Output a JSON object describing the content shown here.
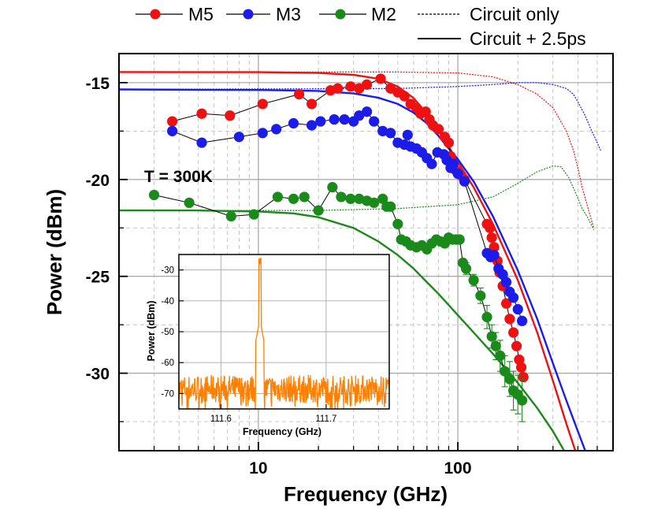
{
  "chart_data": {
    "type": "scatter",
    "xlabel": "Frequency  (GHz)",
    "ylabel": "Power  (dBm)",
    "xscale": "log",
    "xlim": [
      2.0,
      600
    ],
    "ylim": [
      -34,
      -13.5
    ],
    "xticks": [
      10,
      100
    ],
    "xtick_labels": [
      "10",
      "100"
    ],
    "yticks": [
      -15,
      -20,
      -25,
      -30
    ],
    "ytick_labels": [
      "-15",
      "-20",
      "-25",
      "-30"
    ],
    "grid": true,
    "legend_position": "top",
    "annotation": "T = 300K",
    "legend": {
      "m5": "M5",
      "m3": "M3",
      "m2": "M2",
      "circuit_only": "Circuit only",
      "circuit_plus": "Circuit + 2.5ps"
    },
    "series": [
      {
        "name": "M5",
        "color": "#ee1111",
        "style": "markers+line",
        "x": [
          3.7,
          5.2,
          7.2,
          10.5,
          16.0,
          18.5,
          23,
          25,
          29,
          32,
          35,
          41,
          46,
          50,
          54,
          58,
          62,
          65,
          69,
          72,
          75,
          80,
          86,
          90,
          92,
          94,
          97,
          100,
          104,
          108,
          140,
          145,
          148,
          152,
          158,
          162,
          168,
          175,
          182,
          190,
          197,
          203,
          208,
          213
        ],
        "y": [
          -17.0,
          -16.6,
          -16.7,
          -16.1,
          -15.6,
          -16.1,
          -15.4,
          -15.3,
          -15.2,
          -15.3,
          -15.1,
          -14.8,
          -15.3,
          -15.5,
          -15.7,
          -16.1,
          -16.3,
          -16.6,
          -16.5,
          -16.9,
          -17.2,
          -17.4,
          -17.8,
          -18.1,
          -18.8,
          -19.2,
          -19.5,
          -19.6,
          -19.8,
          -20.0,
          -22.3,
          -22.5,
          -23.0,
          -23.5,
          -24.2,
          -24.8,
          -25.5,
          -26.4,
          -27.2,
          -27.9,
          -28.6,
          -29.3,
          -29.7,
          -30.2
        ],
        "errors": []
      },
      {
        "name": "M3",
        "color": "#1b1bea",
        "style": "markers+line",
        "x": [
          3.7,
          5.2,
          8.0,
          10.5,
          12.3,
          15.0,
          18.5,
          20.5,
          24,
          27,
          30,
          32,
          35,
          38,
          42,
          46,
          50,
          54,
          56,
          58,
          62,
          66,
          70,
          74,
          79,
          85,
          88,
          92,
          95,
          100,
          108,
          140,
          146,
          152,
          160,
          168,
          175,
          182,
          190,
          200,
          210
        ],
        "y": [
          -17.5,
          -18.1,
          -17.8,
          -17.6,
          -17.4,
          -17.1,
          -17.2,
          -17.0,
          -16.9,
          -16.9,
          -17.0,
          -16.7,
          -16.5,
          -17.0,
          -17.5,
          -17.6,
          -18.1,
          -18.2,
          -17.7,
          -18.3,
          -18.4,
          -18.6,
          -18.9,
          -19.2,
          -18.6,
          -18.7,
          -19.0,
          -19.4,
          -19.2,
          -19.7,
          -20.1,
          -23.8,
          -24.0,
          -23.9,
          -24.6,
          -24.9,
          -25.3,
          -25.8,
          -26.1,
          -26.7,
          -27.3
        ],
        "errors": []
      },
      {
        "name": "M2",
        "color": "#1a8a1a",
        "style": "markers+line+errorbars",
        "x": [
          3.0,
          4.5,
          7.3,
          9.5,
          12.5,
          15.0,
          17.0,
          20.0,
          23.5,
          26,
          29,
          32,
          35,
          38,
          42,
          44,
          46,
          50,
          52,
          55,
          58,
          62,
          66,
          70,
          74,
          78,
          82,
          86,
          90,
          94,
          98,
          102,
          106,
          110,
          120,
          130,
          140,
          148,
          155,
          163,
          172,
          182,
          190,
          200,
          210
        ],
        "y": [
          -20.8,
          -21.2,
          -21.9,
          -21.8,
          -20.9,
          -21.0,
          -20.9,
          -21.6,
          -20.4,
          -20.9,
          -21.0,
          -21.0,
          -21.1,
          -21.2,
          -21.0,
          -21.4,
          -21.4,
          -22.3,
          -23.1,
          -23.2,
          -23.4,
          -23.5,
          -23.4,
          -23.6,
          -23.3,
          -23.1,
          -23.2,
          -23.3,
          -23.0,
          -23.1,
          -23.1,
          -23.1,
          -24.3,
          -24.6,
          -25.2,
          -26.0,
          -27.1,
          -28.1,
          -28.6,
          -29.1,
          -29.9,
          -30.3,
          -30.9,
          -31.1,
          -31.4
        ],
        "errors": [
          0,
          0,
          0,
          0,
          0,
          0,
          0,
          0,
          0,
          0,
          0,
          0,
          0,
          0,
          0,
          0,
          0,
          0,
          0,
          0,
          0,
          0,
          0,
          0,
          0,
          0,
          0,
          0,
          0,
          0,
          0,
          0,
          0.2,
          0.3,
          0.3,
          0.4,
          0.6,
          0.6,
          0.7,
          0.8,
          0.8,
          0.9,
          1.0,
          1.0,
          1.1
        ]
      },
      {
        "name": "M5 Circuit + 2.5ps",
        "color": "#ee1111",
        "style": "solid",
        "x": [
          2.0,
          10,
          20,
          30,
          40,
          50,
          60,
          70,
          80,
          90,
          100,
          120,
          150,
          200,
          250,
          300,
          350,
          400,
          450
        ],
        "y": [
          -14.45,
          -14.46,
          -14.5,
          -14.6,
          -14.8,
          -15.2,
          -15.8,
          -16.6,
          -17.5,
          -18.3,
          -19.1,
          -20.4,
          -22.3,
          -25.2,
          -27.9,
          -30.4,
          -32.6,
          -34.4,
          -36.0
        ]
      },
      {
        "name": "M3 Circuit + 2.5ps",
        "color": "#1b1bea",
        "style": "solid",
        "x": [
          2.0,
          10,
          20,
          30,
          40,
          50,
          60,
          70,
          80,
          90,
          100,
          120,
          150,
          200,
          250,
          300,
          350,
          400,
          450,
          500
        ],
        "y": [
          -15.35,
          -15.38,
          -15.43,
          -15.56,
          -15.78,
          -16.1,
          -16.55,
          -17.1,
          -17.75,
          -18.4,
          -18.95,
          -20.1,
          -21.9,
          -24.7,
          -27.2,
          -29.5,
          -31.4,
          -33.0,
          -34.4,
          -35.5
        ]
      },
      {
        "name": "M2 Circuit + 2.5ps",
        "color": "#1a8a1a",
        "style": "solid",
        "x": [
          2.0,
          5,
          10,
          15,
          20,
          30,
          40,
          50,
          60,
          70,
          80,
          100,
          120,
          150,
          200,
          250,
          300,
          350,
          400
        ],
        "y": [
          -21.6,
          -21.6,
          -21.65,
          -21.75,
          -21.95,
          -22.5,
          -23.2,
          -23.9,
          -24.6,
          -25.3,
          -25.9,
          -27.0,
          -27.9,
          -29.0,
          -30.5,
          -31.8,
          -33.0,
          -34.2,
          -35.2
        ]
      },
      {
        "name": "M5 Circuit only",
        "color": "#ee1111",
        "style": "dotted",
        "x": [
          2.0,
          20,
          50,
          100,
          150,
          200,
          250,
          300,
          350,
          380,
          400,
          420,
          450,
          480
        ],
        "y": [
          -14.45,
          -14.45,
          -14.45,
          -14.5,
          -14.7,
          -15.1,
          -15.6,
          -16.3,
          -17.5,
          -18.5,
          -19.4,
          -20.4,
          -21.5,
          -22.5
        ]
      },
      {
        "name": "M3 Circuit only",
        "color": "#1b1bea",
        "style": "dotted",
        "x": [
          2.0,
          50,
          100,
          150,
          200,
          250,
          300,
          350,
          380,
          400,
          430,
          460,
          490,
          520
        ],
        "y": [
          -15.35,
          -15.3,
          -15.2,
          -15.1,
          -15.0,
          -15.0,
          -15.1,
          -15.3,
          -15.6,
          -16.0,
          -16.6,
          -17.3,
          -17.9,
          -18.5
        ]
      },
      {
        "name": "M2 Circuit only",
        "color": "#1a8a1a",
        "style": "dotted",
        "x": [
          2.0,
          20,
          50,
          100,
          150,
          200,
          250,
          300,
          330,
          360,
          390,
          420,
          450,
          480
        ],
        "y": [
          -21.6,
          -21.6,
          -21.5,
          -21.3,
          -20.9,
          -20.2,
          -19.6,
          -19.3,
          -19.35,
          -19.9,
          -20.7,
          -21.5,
          -22.0,
          -22.6
        ]
      }
    ],
    "inset": {
      "type": "line",
      "color": "#ff8000",
      "xlabel": "Frequency  (GHz)",
      "ylabel": "Power  (dBm)",
      "xlim": [
        111.56,
        111.76
      ],
      "ylim": [
        -75,
        -25
      ],
      "xticks": [
        111.6,
        111.7
      ],
      "xtick_labels": [
        "111.6",
        "111.7"
      ],
      "yticks": [
        -30,
        -40,
        -50,
        -60,
        -70
      ],
      "ytick_labels": [
        "-30",
        "-40",
        "-50",
        "-60",
        "-70"
      ],
      "noise_floor_dbm": -70,
      "noise_range_dbm": [
        -75,
        -64
      ],
      "peak_frequency_ghz": 111.637,
      "peak_power_dbm": -28.2
    }
  }
}
